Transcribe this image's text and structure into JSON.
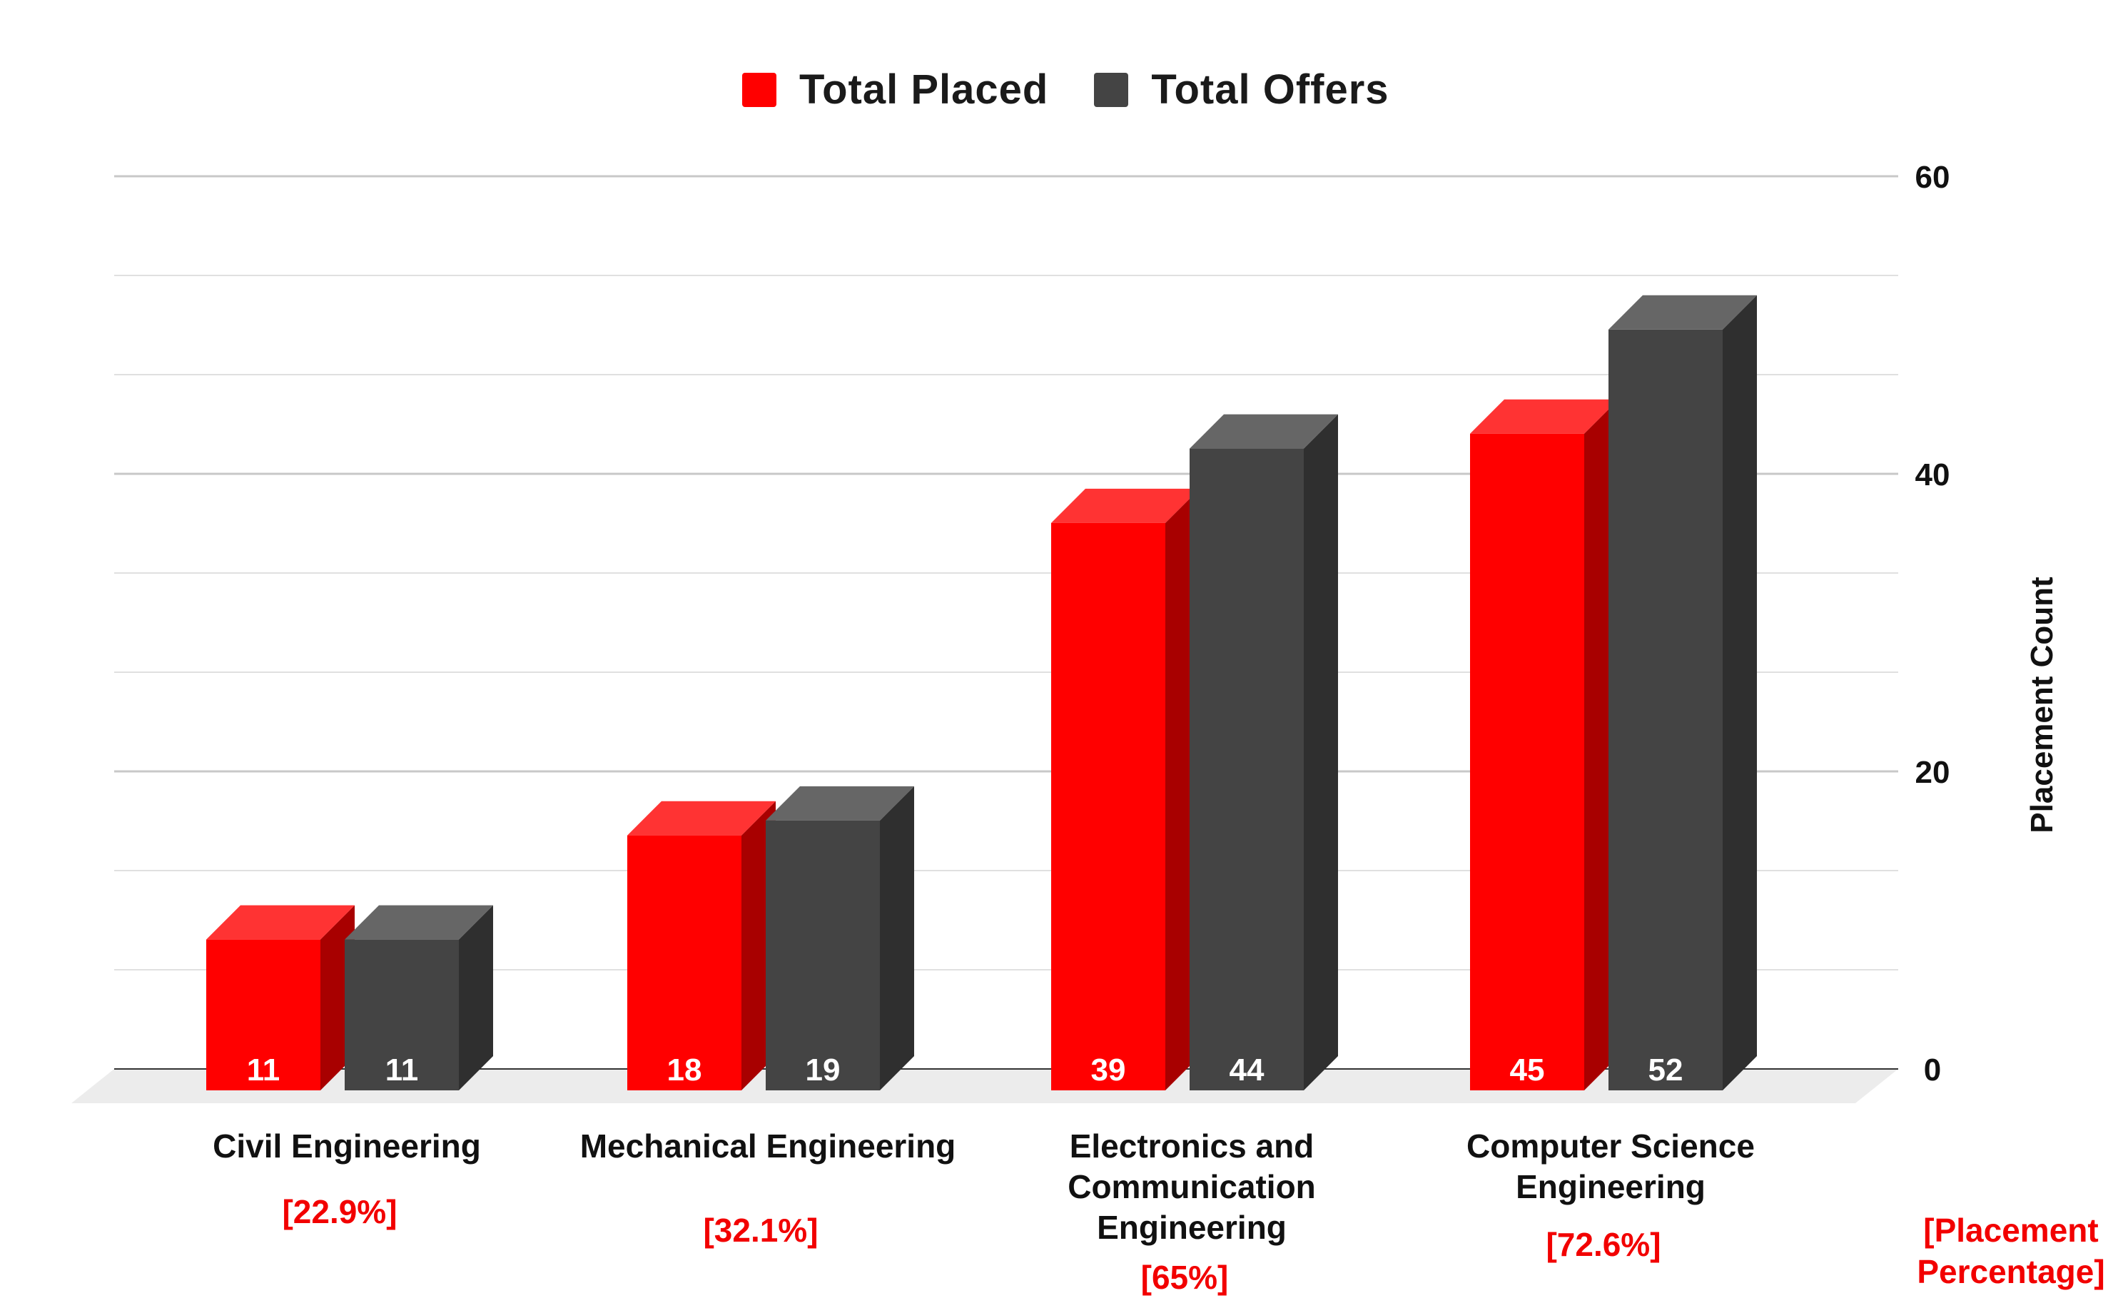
{
  "chart_data": {
    "type": "bar",
    "categories": [
      [
        "Civil Engineering"
      ],
      [
        "Mechanical Engineering"
      ],
      [
        "Electronics and",
        "Communication",
        "Engineering"
      ],
      [
        "Computer Science",
        "Engineering"
      ]
    ],
    "series": [
      {
        "name": "Total Placed",
        "values": [
          11,
          18,
          39,
          45
        ],
        "color": "#ff0000"
      },
      {
        "name": "Total Offers",
        "values": [
          11,
          19,
          44,
          52
        ],
        "color": "#444444"
      }
    ],
    "placement_percentages": [
      "[22.9%]",
      "[32.1%]",
      "[65%]",
      "[72.6%]"
    ],
    "ylabel": "Placement Count",
    "percentage_label": [
      "[Placement",
      "Percentage]"
    ],
    "yticks": [
      0,
      20,
      40,
      60
    ],
    "ylim": [
      0,
      60
    ],
    "grid": true,
    "legend_position": "top-center",
    "style": "3d-bar"
  }
}
